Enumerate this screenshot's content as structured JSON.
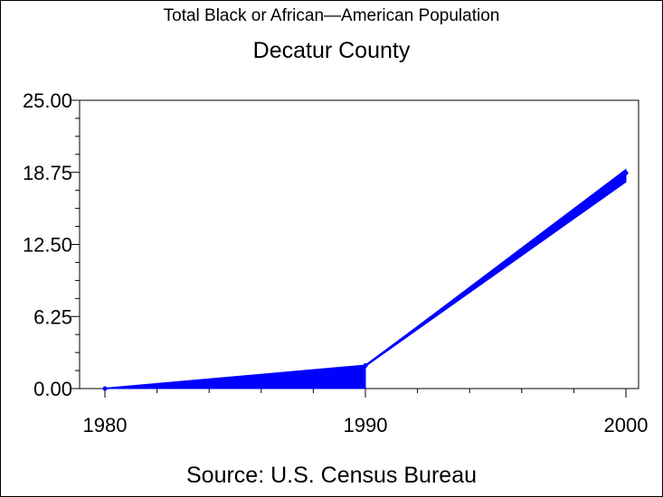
{
  "chart_data": {
    "type": "area",
    "title": "Total Black or African—American Population",
    "subtitle": "Decatur County",
    "footnote": "Source: U.S. Census Bureau",
    "xlabel": "",
    "ylabel": "",
    "x": [
      1980,
      1990,
      2000
    ],
    "series": [
      {
        "values": [
          0,
          2,
          18.7
        ]
      }
    ],
    "xlim": [
      1980,
      2000
    ],
    "ylim": [
      0,
      25
    ],
    "y_ticks": [
      "0.00",
      "6.25",
      "12.50",
      "18.75",
      "25.00"
    ],
    "x_ticks": [
      "1980",
      "1990",
      "2000"
    ],
    "grid": false,
    "legend": "none",
    "series_color": "#0000ff"
  }
}
